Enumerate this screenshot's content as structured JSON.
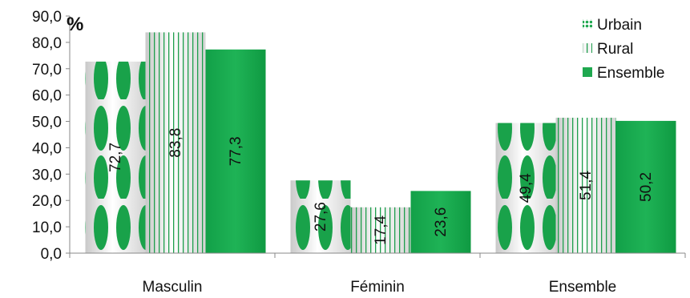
{
  "chart_data": {
    "type": "bar",
    "unit_label": "%",
    "categories": [
      "Masculin",
      "Féminin",
      "Ensemble"
    ],
    "series": [
      {
        "name": "Urbain",
        "values": [
          72.7,
          27.6,
          49.4
        ],
        "labels": [
          "72,7",
          "27,6",
          "49,4"
        ],
        "color": "#1fa84f",
        "pattern": "ovals"
      },
      {
        "name": "Rural",
        "values": [
          83.8,
          17.4,
          51.4
        ],
        "labels": [
          "83,8",
          "17,4",
          "51,4"
        ],
        "color": "#1fa84f",
        "pattern": "vertical-stripes"
      },
      {
        "name": "Ensemble",
        "values": [
          77.3,
          23.6,
          50.2
        ],
        "labels": [
          "77,3",
          "23,6",
          "50,2"
        ],
        "color": "#1fa84f",
        "pattern": "solid"
      }
    ],
    "yticks": [
      "0,0",
      "10,0",
      "20,0",
      "30,0",
      "40,0",
      "50,0",
      "60,0",
      "70,0",
      "80,0",
      "90,0"
    ],
    "ylim": [
      0,
      90
    ],
    "grid": false,
    "legend_position": "top-right",
    "data_label_orientation": "vertical"
  }
}
